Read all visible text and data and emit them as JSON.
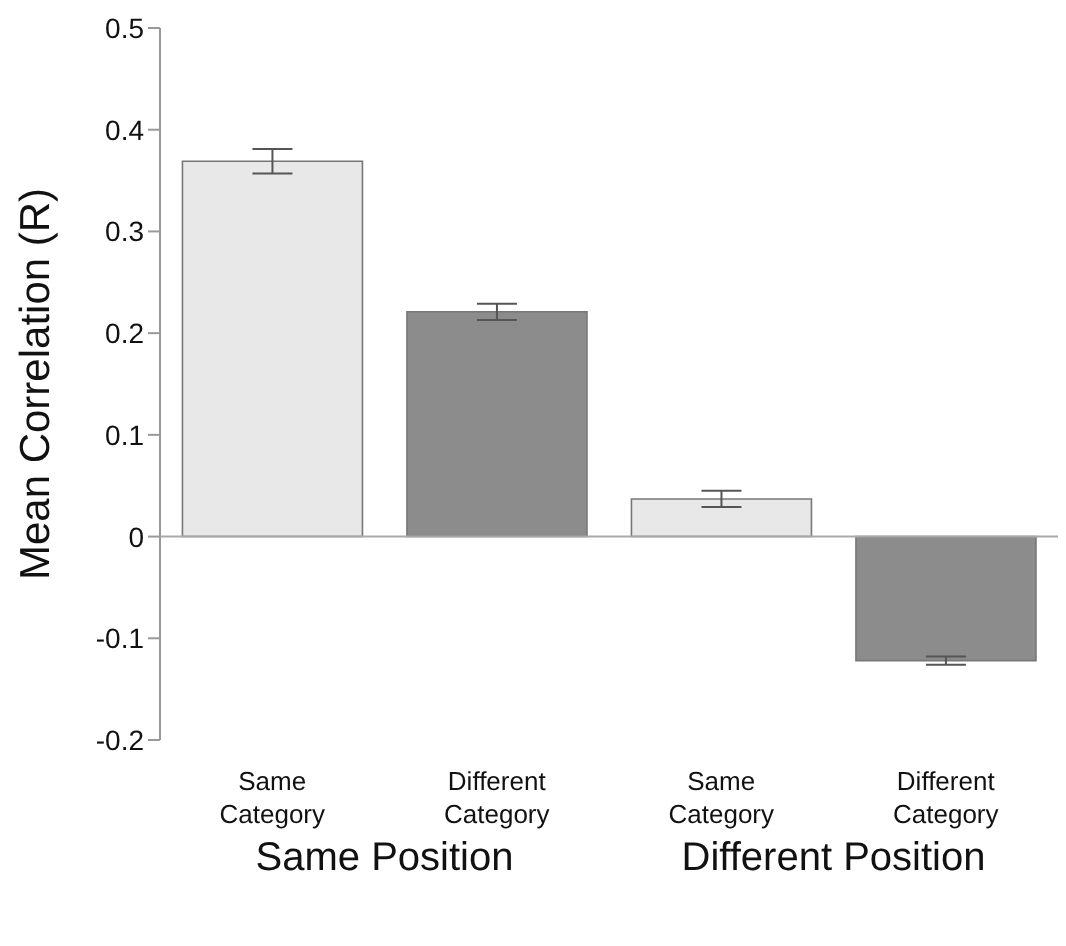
{
  "chart_data": {
    "type": "bar",
    "ylabel": "Mean Correlation (R)",
    "categories": [
      "Same Category",
      "Different Category",
      "Same Category",
      "Different Category"
    ],
    "values": [
      0.369,
      0.221,
      0.037,
      -0.122
    ],
    "colors": [
      "#e8e8e8",
      "#8c8c8c",
      "#e8e8e8",
      "#8c8c8c"
    ],
    "errors": [
      0.012,
      0.008,
      0.008,
      0.004
    ],
    "annotations": [
      "Same Position",
      "Different Position"
    ],
    "ylim": [
      -0.2,
      0.5
    ],
    "yticks": [
      -0.2,
      -0.1,
      0,
      0.1,
      0.2,
      0.3,
      0.4,
      0.5
    ]
  }
}
